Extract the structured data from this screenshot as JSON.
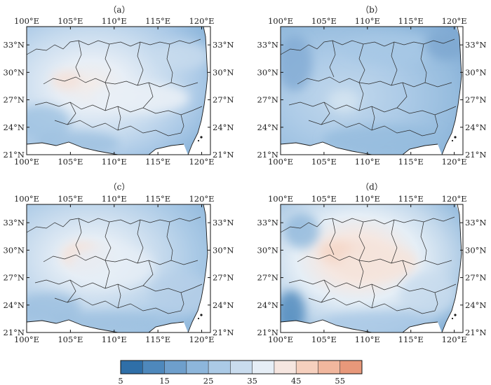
{
  "panels": [
    {
      "label": "（a）"
    },
    {
      "label": "（b）"
    },
    {
      "label": "（c）"
    },
    {
      "label": "（d）"
    }
  ],
  "axes": {
    "x_ticks": [
      "100°E",
      "105°E",
      "110°E",
      "115°E",
      "120°E"
    ],
    "y_ticks": [
      "33°N",
      "30°N",
      "27°N",
      "24°N",
      "21°N"
    ],
    "x_values": [
      100,
      105,
      110,
      115,
      120
    ],
    "y_values": [
      33,
      30,
      27,
      24,
      21
    ],
    "lon_range": [
      100,
      121
    ],
    "lat_range": [
      21,
      35
    ]
  },
  "colorbar": {
    "levels": [
      5,
      10,
      15,
      20,
      25,
      30,
      35,
      40,
      45,
      50,
      55,
      60
    ],
    "tick_labels": [
      "5",
      "15",
      "25",
      "35",
      "45",
      "55"
    ],
    "tick_values": [
      5,
      15,
      25,
      35,
      45,
      55
    ],
    "colors": [
      "#2f6fa8",
      "#4e88bc",
      "#6e9fcc",
      "#8db6db",
      "#abcae6",
      "#c9dcee",
      "#e6eef6",
      "#f6e6e0",
      "#f6d0be",
      "#f1b79e",
      "#e8987a"
    ]
  }
}
